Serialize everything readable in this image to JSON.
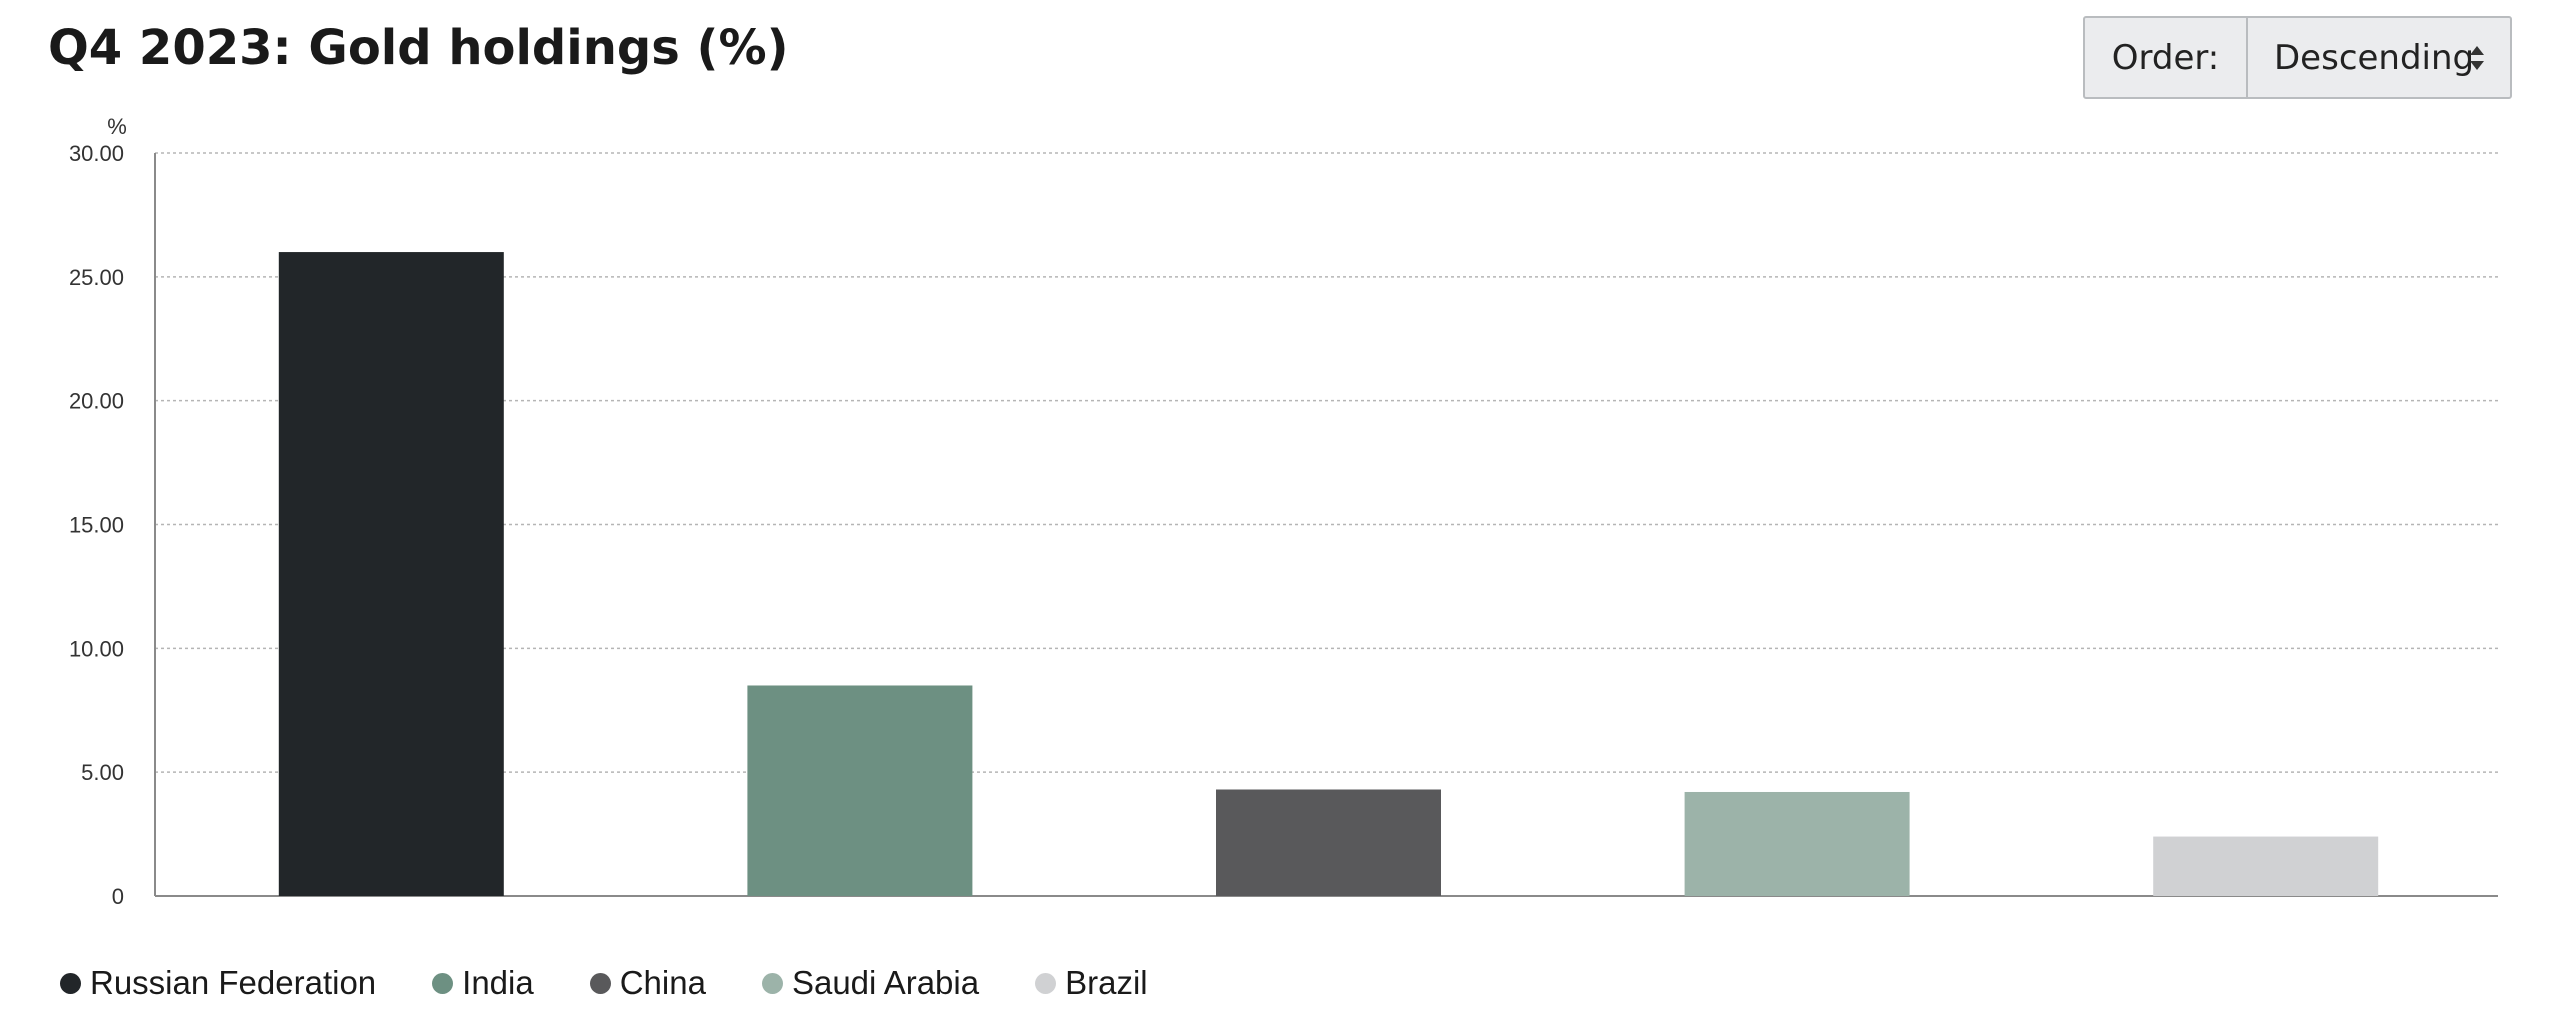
{
  "title": "Q4 2023: Gold holdings (%)",
  "order": {
    "label": "Order:",
    "selected": "Descending"
  },
  "chart_data": {
    "type": "bar",
    "title": "Q4 2023: Gold holdings (%)",
    "ylabel": "%",
    "xlabel": "",
    "ylim": [
      0,
      30
    ],
    "yticks": [
      "0",
      "5.00",
      "10.00",
      "15.00",
      "20.00",
      "25.00",
      "30.00"
    ],
    "ytick_values": [
      0,
      5,
      10,
      15,
      20,
      25,
      30
    ],
    "grid": "horizontal dotted",
    "legend_position": "bottom-left",
    "categories": [
      "Russian Federation",
      "India",
      "China",
      "Saudi Arabia",
      "Brazil"
    ],
    "values": [
      26.0,
      8.5,
      4.3,
      4.2,
      2.4
    ],
    "colors": [
      "#222629",
      "#6d9082",
      "#59595b",
      "#9cb3a9",
      "#d0d1d3"
    ]
  }
}
